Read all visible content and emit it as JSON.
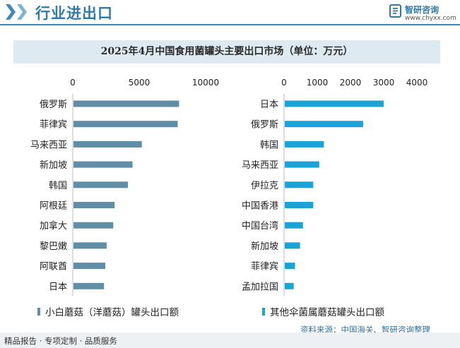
{
  "header": {
    "section_title": "行业进出口",
    "logo_name": "智研咨询",
    "logo_url": "www.chyxx.com"
  },
  "chart_title": "2025年4月中国食用菌罐头主要出口市场（单位：万元）",
  "chart_data": [
    {
      "type": "bar",
      "orientation": "horizontal",
      "categories": [
        "俄罗斯",
        "菲律宾",
        "马来西亚",
        "新加坡",
        "韩国",
        "阿根廷",
        "加拿大",
        "黎巴嫩",
        "阿联酋",
        "日本"
      ],
      "series": [
        {
          "name": "小白蘑菇（洋蘑菇）罐头出口额",
          "values": [
            8000,
            7900,
            5200,
            4500,
            4150,
            3150,
            3050,
            2550,
            2450,
            2350
          ]
        }
      ],
      "xlim": [
        0,
        10000
      ],
      "ticks": [
        0,
        5000,
        10000
      ],
      "axis_position": "top",
      "color": "#5f8ea6"
    },
    {
      "type": "bar",
      "orientation": "horizontal",
      "categories": [
        "日本",
        "俄罗斯",
        "韩国",
        "马来西亚",
        "伊拉克",
        "中国香港",
        "中国台湾",
        "新加坡",
        "菲律宾",
        "孟加拉国"
      ],
      "series": [
        {
          "name": "其他伞菌属蘑菇罐头出口额",
          "values": [
            3000,
            2380,
            1200,
            1060,
            880,
            880,
            570,
            480,
            330,
            290
          ]
        }
      ],
      "xlim": [
        0,
        4000
      ],
      "ticks": [
        0,
        1000,
        2000,
        3000,
        4000
      ],
      "axis_position": "top",
      "color": "#1aa3d6"
    }
  ],
  "source": "资料来源：中国海关、智研咨询整理",
  "footer": "精品报告 · 专项定制 · 品质服务"
}
